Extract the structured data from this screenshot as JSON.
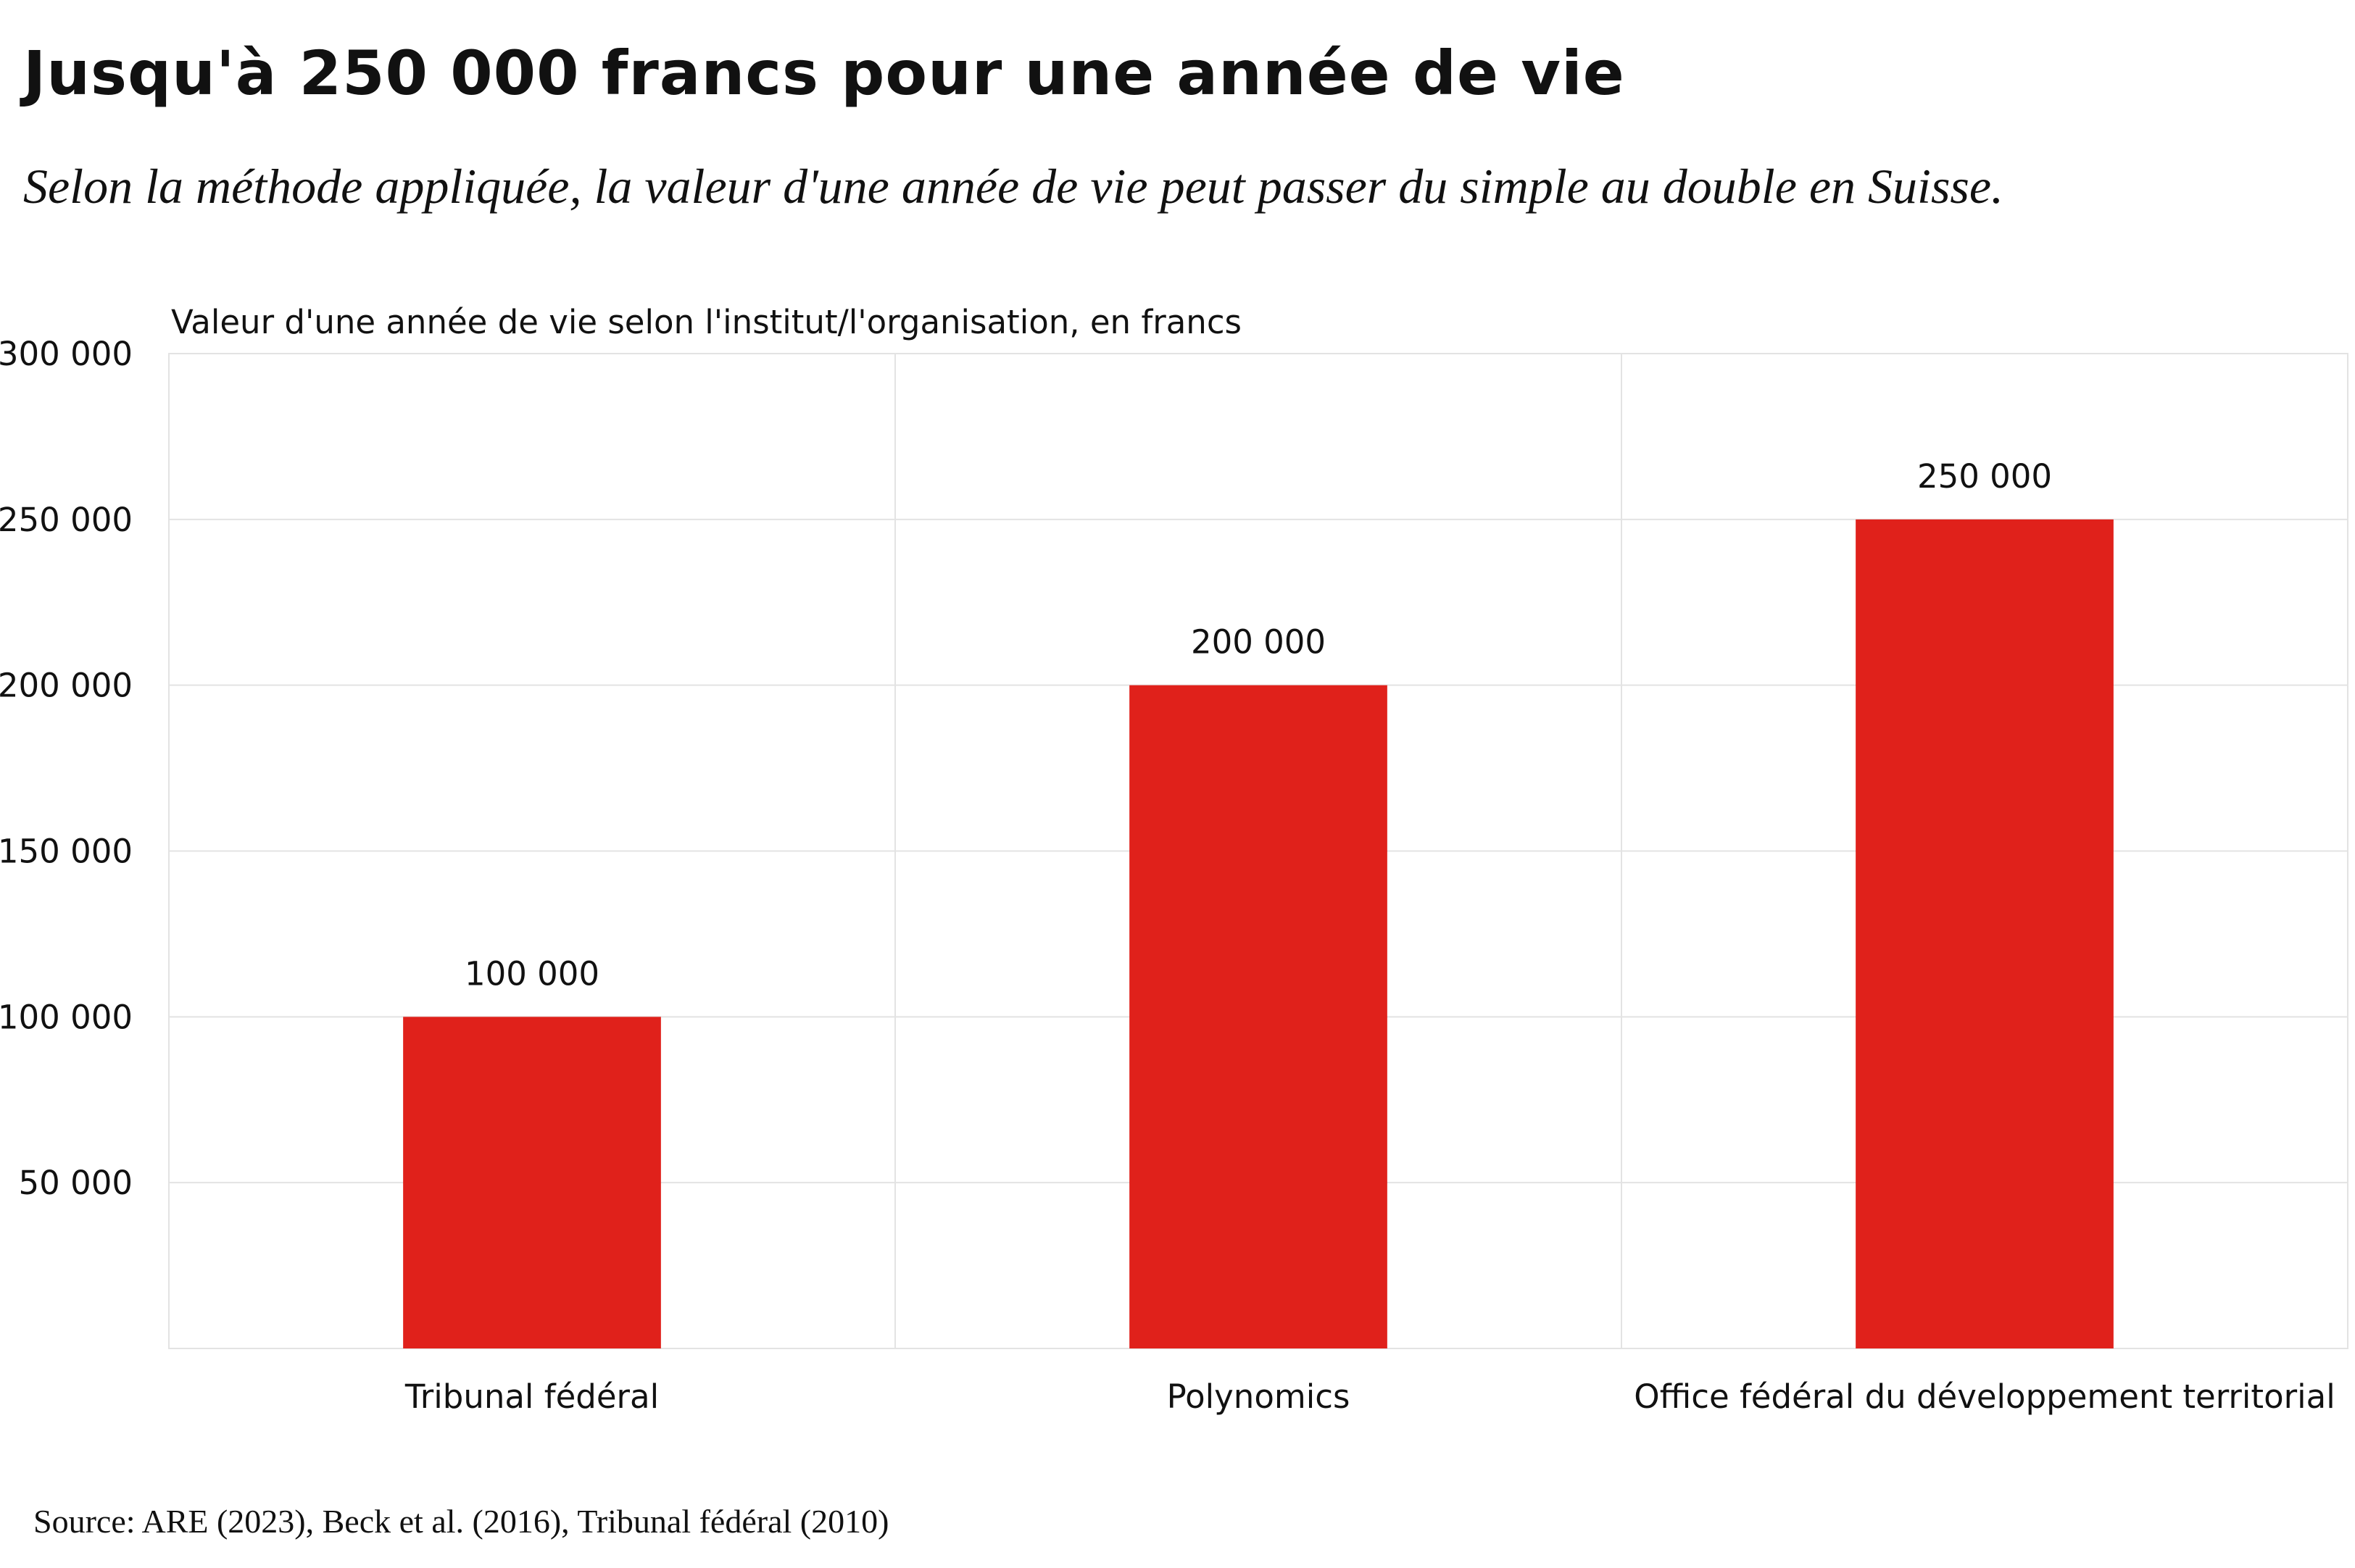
{
  "title": "Jusqu'à 250 000 francs pour une année de vie",
  "subtitle": "Selon la méthode appliquée, la valeur d'une année de vie peut passer du simple au double en Suisse.",
  "source": "Source: ARE (2023), Beck et al. (2016), Tribunal fédéral (2010)",
  "colors": {
    "bar": "#e0211b",
    "grid": "#e3e3e3",
    "text": "#111111"
  },
  "chart_data": {
    "type": "bar",
    "ylabel": "Valeur d'une année de vie selon l'institut/l'organisation, en francs",
    "categories": [
      "Tribunal fédéral",
      "Polynomics",
      "Office fédéral du développement territorial"
    ],
    "values": [
      100000,
      200000,
      250000
    ],
    "value_labels": [
      "100 000",
      "200 000",
      "250 000"
    ],
    "ylim": [
      0,
      300000
    ],
    "yticks": [
      50000,
      100000,
      150000,
      200000,
      250000,
      300000
    ],
    "ytick_labels": [
      "50 000",
      "100 000",
      "150 000",
      "200 000",
      "250 000",
      "300 000"
    ],
    "grid": true
  }
}
